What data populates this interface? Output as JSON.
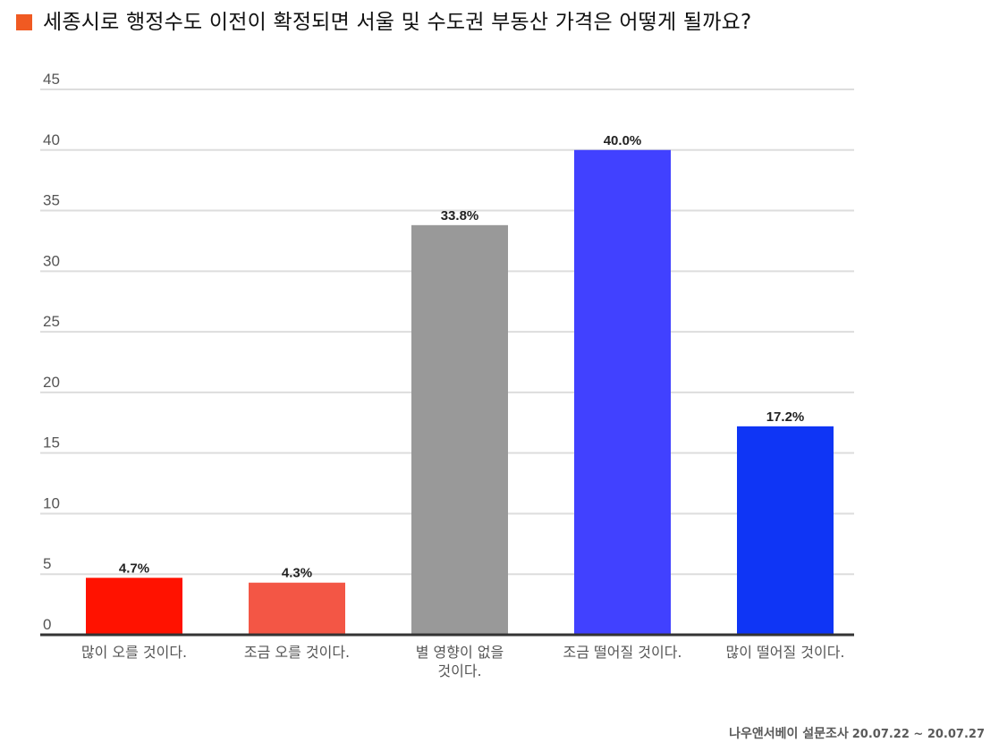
{
  "header": {
    "title": "세종시로 행정수도 이전이 확정되면 서울 및 수도권 부동산 가격은 어떻게 될까요?",
    "accent_color": "#f05a22"
  },
  "source": {
    "label": "나우앤서베이 설문조사",
    "date": "20.07.22 ~ 20.07.27"
  },
  "chart_data": {
    "type": "bar",
    "categories": [
      "많이 오를 것이다.",
      "조금 오를 것이다.",
      "별 영향이 없을 것이다.",
      "조금 떨어질 것이다.",
      "많이 떨어질 것이다."
    ],
    "category_lines": [
      [
        "많이 오를 것이다."
      ],
      [
        "조금 오를 것이다."
      ],
      [
        "별 영향이 없을",
        "것이다."
      ],
      [
        "조금 떨어질 것이다."
      ],
      [
        "많이 떨어질 것이다."
      ]
    ],
    "values": [
      4.7,
      4.3,
      33.8,
      40.0,
      17.2
    ],
    "value_labels": [
      "4.7%",
      "4.3%",
      "33.8%",
      "40.0%",
      "17.2%"
    ],
    "colors": [
      "#ff1200",
      "#f35645",
      "#999999",
      "#4141ff",
      "#0f35f5"
    ],
    "ylim": [
      0,
      45
    ],
    "yticks": [
      0,
      5,
      10,
      15,
      20,
      25,
      30,
      35,
      40,
      45
    ],
    "grid": true,
    "legend": "none",
    "title": "세종시로 행정수도 이전이 확정되면 서울 및 수도권 부동산 가격은 어떻게 될까요?",
    "xlabel": "",
    "ylabel": ""
  }
}
